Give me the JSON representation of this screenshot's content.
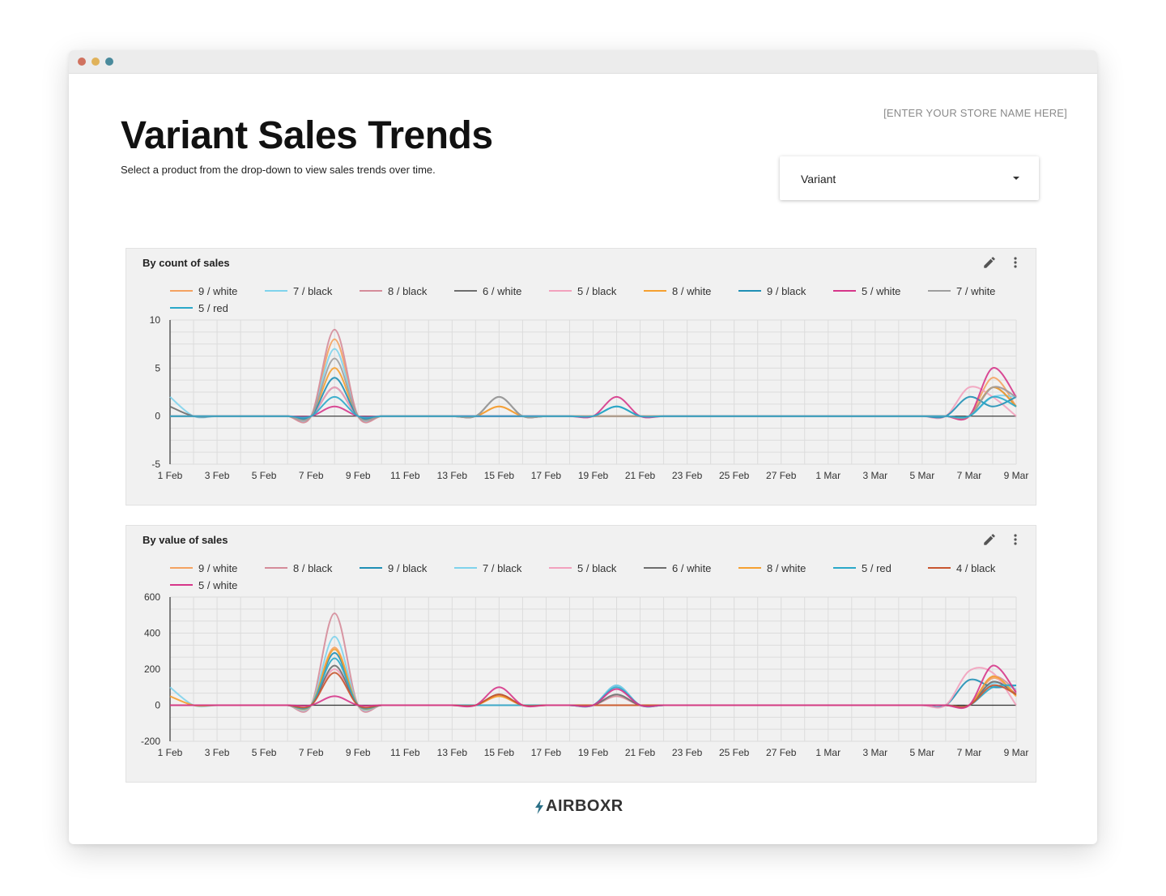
{
  "window": {
    "dots": [
      {
        "name": "close",
        "color": "#d0725f"
      },
      {
        "name": "minimize",
        "color": "#e0b25a"
      },
      {
        "name": "maximize",
        "color": "#4a8a9c"
      }
    ]
  },
  "header": {
    "store_name": "[ENTER YOUR STORE NAME HERE]",
    "title": "Variant Sales Trends",
    "subtitle": "Select a product from the drop-down to view sales trends over time."
  },
  "dropdown": {
    "value": "Variant",
    "icon": "caret-down-icon"
  },
  "brand": {
    "name": "AIRBOXR",
    "icon": "bolt-icon"
  },
  "chart_data": [
    {
      "type": "line",
      "title": "By count of sales",
      "x": [
        "1 Feb",
        "2 Feb",
        "3 Feb",
        "4 Feb",
        "5 Feb",
        "6 Feb",
        "7 Feb",
        "8 Feb",
        "9 Feb",
        "10 Feb",
        "11 Feb",
        "12 Feb",
        "13 Feb",
        "14 Feb",
        "15 Feb",
        "16 Feb",
        "17 Feb",
        "18 Feb",
        "19 Feb",
        "20 Feb",
        "21 Feb",
        "22 Feb",
        "23 Feb",
        "24 Feb",
        "25 Feb",
        "26 Feb",
        "27 Feb",
        "28 Feb",
        "1 Mar",
        "2 Mar",
        "3 Mar",
        "4 Mar",
        "5 Mar",
        "6 Mar",
        "7 Mar",
        "8 Mar",
        "9 Mar"
      ],
      "xticks": [
        "1 Feb",
        "3 Feb",
        "5 Feb",
        "7 Feb",
        "9 Feb",
        "11 Feb",
        "13 Feb",
        "15 Feb",
        "17 Feb",
        "19 Feb",
        "21 Feb",
        "23 Feb",
        "25 Feb",
        "27 Feb",
        "1 Mar",
        "3 Mar",
        "5 Mar",
        "7 Mar",
        "9 Mar"
      ],
      "ylim": [
        -5,
        10
      ],
      "yticks": [
        10,
        5,
        0,
        -5
      ],
      "grid": true,
      "legend": "top",
      "series": [
        {
          "name": "9 / white",
          "color": "#f4a261",
          "peaks": {
            "7": 8,
            "14": 1,
            "35": 4,
            "36": 1
          }
        },
        {
          "name": "7 / black",
          "color": "#7fd3ec",
          "peaks": {
            "0": 2,
            "7": 7,
            "35": 2,
            "36": 2
          }
        },
        {
          "name": "8 / black",
          "color": "#d58c9a",
          "peaks": {
            "7": 9,
            "35": 3,
            "36": 2
          }
        },
        {
          "name": "6 / white",
          "color": "#6d6d6d",
          "peaks": {
            "0": 1,
            "7": 3,
            "14": 2,
            "35": 3,
            "36": 1
          }
        },
        {
          "name": "5 / black",
          "color": "#f2a1bd",
          "peaks": {
            "7": 3,
            "34": 3,
            "35": 2
          }
        },
        {
          "name": "8 / white",
          "color": "#f5a030",
          "peaks": {
            "7": 5,
            "14": 1,
            "35": 3,
            "36": 1
          }
        },
        {
          "name": "9 / black",
          "color": "#1f8fb5",
          "peaks": {
            "7": 4,
            "19": 1,
            "34": 2,
            "35": 1,
            "36": 2
          }
        },
        {
          "name": "5 / white",
          "color": "#d6368a",
          "peaks": {
            "7": 1,
            "19": 2,
            "35": 5,
            "36": 2
          }
        },
        {
          "name": "7 / white",
          "color": "#9e9e9e",
          "peaks": {
            "7": 6,
            "14": 2,
            "35": 3,
            "36": 2
          }
        },
        {
          "name": "5 / red",
          "color": "#2aa8c9",
          "peaks": {
            "7": 2,
            "19": 1,
            "35": 2,
            "36": 1
          }
        }
      ]
    },
    {
      "type": "line",
      "title": "By value of sales",
      "x": [
        "1 Feb",
        "2 Feb",
        "3 Feb",
        "4 Feb",
        "5 Feb",
        "6 Feb",
        "7 Feb",
        "8 Feb",
        "9 Feb",
        "10 Feb",
        "11 Feb",
        "12 Feb",
        "13 Feb",
        "14 Feb",
        "15 Feb",
        "16 Feb",
        "17 Feb",
        "18 Feb",
        "19 Feb",
        "20 Feb",
        "21 Feb",
        "22 Feb",
        "23 Feb",
        "24 Feb",
        "25 Feb",
        "26 Feb",
        "27 Feb",
        "28 Feb",
        "1 Mar",
        "2 Mar",
        "3 Mar",
        "4 Mar",
        "5 Mar",
        "6 Mar",
        "7 Mar",
        "8 Mar",
        "9 Mar"
      ],
      "xticks": [
        "1 Feb",
        "3 Feb",
        "5 Feb",
        "7 Feb",
        "9 Feb",
        "11 Feb",
        "13 Feb",
        "15 Feb",
        "17 Feb",
        "19 Feb",
        "21 Feb",
        "23 Feb",
        "25 Feb",
        "27 Feb",
        "1 Mar",
        "3 Mar",
        "5 Mar",
        "7 Mar",
        "9 Mar"
      ],
      "ylim": [
        -200,
        600
      ],
      "yticks": [
        600,
        400,
        200,
        0,
        -200
      ],
      "grid": true,
      "legend": "top",
      "series": [
        {
          "name": "9 / white",
          "color": "#f4a261",
          "peaks": {
            "7": 320,
            "14": 50,
            "35": 150,
            "36": 60
          }
        },
        {
          "name": "8 / black",
          "color": "#d58c9a",
          "peaks": {
            "7": 510,
            "19": 50,
            "35": 160,
            "36": 80
          }
        },
        {
          "name": "9 / black",
          "color": "#1f8fb5",
          "peaks": {
            "7": 290,
            "19": 110,
            "34": 140,
            "35": 100,
            "36": 110
          }
        },
        {
          "name": "7 / black",
          "color": "#7fd3ec",
          "peaks": {
            "0": 100,
            "7": 380,
            "19": 110,
            "35": 120,
            "36": 90
          }
        },
        {
          "name": "5 / black",
          "color": "#f2a1bd",
          "peaks": {
            "7": 200,
            "34": 190,
            "35": 180
          }
        },
        {
          "name": "6 / white",
          "color": "#6d6d6d",
          "peaks": {
            "7": 220,
            "14": 60,
            "19": 60,
            "35": 130,
            "36": 60
          }
        },
        {
          "name": "8 / white",
          "color": "#f5a030",
          "peaks": {
            "0": 50,
            "7": 310,
            "14": 50,
            "35": 160,
            "36": 50
          }
        },
        {
          "name": "5 / red",
          "color": "#2aa8c9",
          "peaks": {
            "7": 260,
            "19": 100,
            "35": 100,
            "36": 110
          }
        },
        {
          "name": "4 / black",
          "color": "#c8552f",
          "peaks": {
            "7": 180,
            "14": 60,
            "35": 110,
            "36": 60
          }
        },
        {
          "name": "5 / white",
          "color": "#d6368a",
          "peaks": {
            "7": 50,
            "14": 100,
            "19": 90,
            "35": 220,
            "36": 70
          }
        }
      ]
    }
  ]
}
